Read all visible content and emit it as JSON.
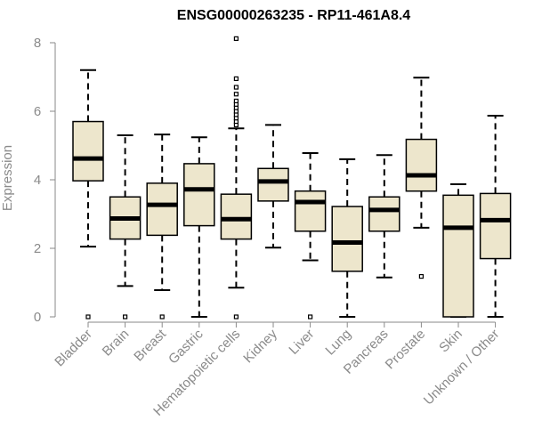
{
  "chart_data": {
    "type": "boxplot",
    "title": "ENSG00000263235 - RP11-461A8.4",
    "xlabel": "",
    "ylabel": "Expression",
    "ylim": [
      0,
      8
    ],
    "yticks": [
      0,
      2,
      4,
      6,
      8
    ],
    "colors": {
      "box_fill": "#ede6cc",
      "stroke": "#000000",
      "axis": "#8a8a8a"
    },
    "categories": [
      "Bladder",
      "Brain",
      "Breast",
      "Gastric",
      "Hematopoietic cells",
      "Kidney",
      "Liver",
      "Lung",
      "Pancreas",
      "Prostate",
      "Skin",
      "Unknown / Other"
    ],
    "boxes": [
      {
        "name": "Bladder",
        "whisker_low": 2.05,
        "q1": 3.97,
        "median": 4.62,
        "q3": 5.7,
        "whisker_high": 7.2,
        "outliers": [
          0
        ]
      },
      {
        "name": "Brain",
        "whisker_low": 0.9,
        "q1": 2.27,
        "median": 2.87,
        "q3": 3.5,
        "whisker_high": 5.3,
        "outliers": [
          0
        ]
      },
      {
        "name": "Breast",
        "whisker_low": 0.78,
        "q1": 2.38,
        "median": 3.27,
        "q3": 3.9,
        "whisker_high": 5.32,
        "outliers": [
          0
        ]
      },
      {
        "name": "Gastric",
        "whisker_low": 0.0,
        "q1": 2.66,
        "median": 3.72,
        "q3": 4.47,
        "whisker_high": 5.24,
        "outliers": []
      },
      {
        "name": "Hematopoietic cells",
        "whisker_low": 0.85,
        "q1": 2.27,
        "median": 2.85,
        "q3": 3.58,
        "whisker_high": 5.5,
        "outliers": [
          0,
          5.6,
          5.7,
          5.8,
          5.9,
          6.0,
          6.1,
          6.2,
          6.3,
          6.5,
          6.7,
          6.95,
          8.12
        ]
      },
      {
        "name": "Kidney",
        "whisker_low": 2.02,
        "q1": 3.38,
        "median": 3.95,
        "q3": 4.33,
        "whisker_high": 5.6,
        "outliers": []
      },
      {
        "name": "Liver",
        "whisker_low": 1.65,
        "q1": 2.5,
        "median": 3.35,
        "q3": 3.67,
        "whisker_high": 4.78,
        "outliers": [
          0
        ]
      },
      {
        "name": "Lung",
        "whisker_low": 0.0,
        "q1": 1.33,
        "median": 2.17,
        "q3": 3.22,
        "whisker_high": 4.6,
        "outliers": []
      },
      {
        "name": "Pancreas",
        "whisker_low": 1.15,
        "q1": 2.5,
        "median": 3.12,
        "q3": 3.5,
        "whisker_high": 4.72,
        "outliers": []
      },
      {
        "name": "Prostate",
        "whisker_low": 2.6,
        "q1": 3.67,
        "median": 4.13,
        "q3": 5.18,
        "whisker_high": 6.98,
        "outliers": [
          1.18
        ]
      },
      {
        "name": "Skin",
        "whisker_low": 0.0,
        "q1": 0.0,
        "median": 2.6,
        "q3": 3.55,
        "whisker_high": 3.87,
        "outliers": []
      },
      {
        "name": "Unknown / Other",
        "whisker_low": 0.0,
        "q1": 1.7,
        "median": 2.82,
        "q3": 3.6,
        "whisker_high": 5.87,
        "outliers": []
      }
    ]
  }
}
